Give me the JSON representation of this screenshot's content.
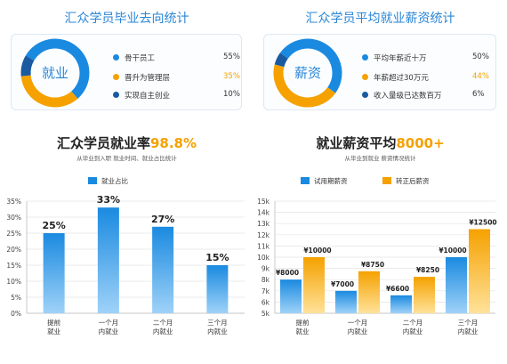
{
  "left_top": {
    "title": "汇众学员毕业去向统计",
    "donut_label": "就业",
    "donut_values": [
      55,
      35,
      10
    ],
    "items": [
      {
        "label": "骨干员工",
        "pct": "55%",
        "color": "#1a8ae0",
        "pct_color": "#333333"
      },
      {
        "label": "晋升为管理层",
        "pct": "35%",
        "color": "#f5a100",
        "pct_color": "#f5a100"
      },
      {
        "label": "实现自主创业",
        "pct": "10%",
        "color": "#1a5aa0",
        "pct_color": "#333333"
      }
    ]
  },
  "right_top": {
    "title": "汇众学员平均就业薪资统计",
    "donut_label": "薪资",
    "donut_values": [
      50,
      44,
      6
    ],
    "items": [
      {
        "label": "平均年薪近十万",
        "pct": "50%",
        "color": "#1a8ae0",
        "pct_color": "#333333"
      },
      {
        "label": "年薪超过30万元",
        "pct": "44%",
        "color": "#f5a100",
        "pct_color": "#f5a100"
      },
      {
        "label": "收入量级已达数百万",
        "pct": "6%",
        "color": "#1a5aa0",
        "pct_color": "#333333"
      }
    ]
  },
  "left_chart_header": {
    "title_prefix": "汇众学员就业率",
    "title_highlight": "98.8%",
    "subtitle": "从毕业到入职 就业时间、就业占比统计"
  },
  "right_chart_header": {
    "title_prefix": "就业薪资平均",
    "title_highlight": "8000+",
    "subtitle": "从毕业到就业 薪资情况统计"
  },
  "chart_data": [
    {
      "type": "bar",
      "legend": [
        "就业占比"
      ],
      "categories": [
        [
          "提前",
          "就业"
        ],
        [
          "一个月",
          "内就业"
        ],
        [
          "二个月",
          "内就业"
        ],
        [
          "三个月",
          "内就业"
        ]
      ],
      "series": [
        {
          "name": "就业占比",
          "values": [
            25,
            33,
            27,
            15
          ],
          "labels": [
            "25%",
            "33%",
            "27%",
            "15%"
          ],
          "color": "#1a8ae0"
        }
      ],
      "ylim": [
        0,
        35
      ],
      "yticks": [
        0,
        5,
        10,
        15,
        20,
        25,
        30,
        35
      ],
      "ytick_labels": [
        "0%",
        "5%",
        "10%",
        "15%",
        "20%",
        "25%",
        "30%",
        "35%"
      ],
      "grid": true
    },
    {
      "type": "bar",
      "legend": [
        "试用期薪资",
        "转正后薪资"
      ],
      "categories": [
        [
          "提前",
          "就业"
        ],
        [
          "一个月",
          "内就业"
        ],
        [
          "二个月",
          "内就业"
        ],
        [
          "三个月",
          "内就业"
        ]
      ],
      "series": [
        {
          "name": "试用期薪资",
          "values": [
            8000,
            7000,
            6600,
            10000
          ],
          "labels": [
            "¥8000",
            "¥7000",
            "¥6600",
            "¥10000"
          ],
          "color": "#1a8ae0"
        },
        {
          "name": "转正后薪资",
          "values": [
            10000,
            8750,
            8250,
            12500
          ],
          "labels": [
            "¥10000",
            "¥8750",
            "¥8250",
            "¥12500"
          ],
          "color": "#f5a100"
        }
      ],
      "ylim": [
        5000,
        15000
      ],
      "yticks": [
        5000,
        6000,
        7000,
        8000,
        9000,
        10000,
        11000,
        12000,
        13000,
        14000,
        15000
      ],
      "ytick_labels": [
        "5k",
        "6k",
        "7k",
        "8k",
        "9k",
        "10k",
        "11k",
        "12k",
        "13k",
        "14k",
        "15k"
      ],
      "grid": true
    }
  ]
}
